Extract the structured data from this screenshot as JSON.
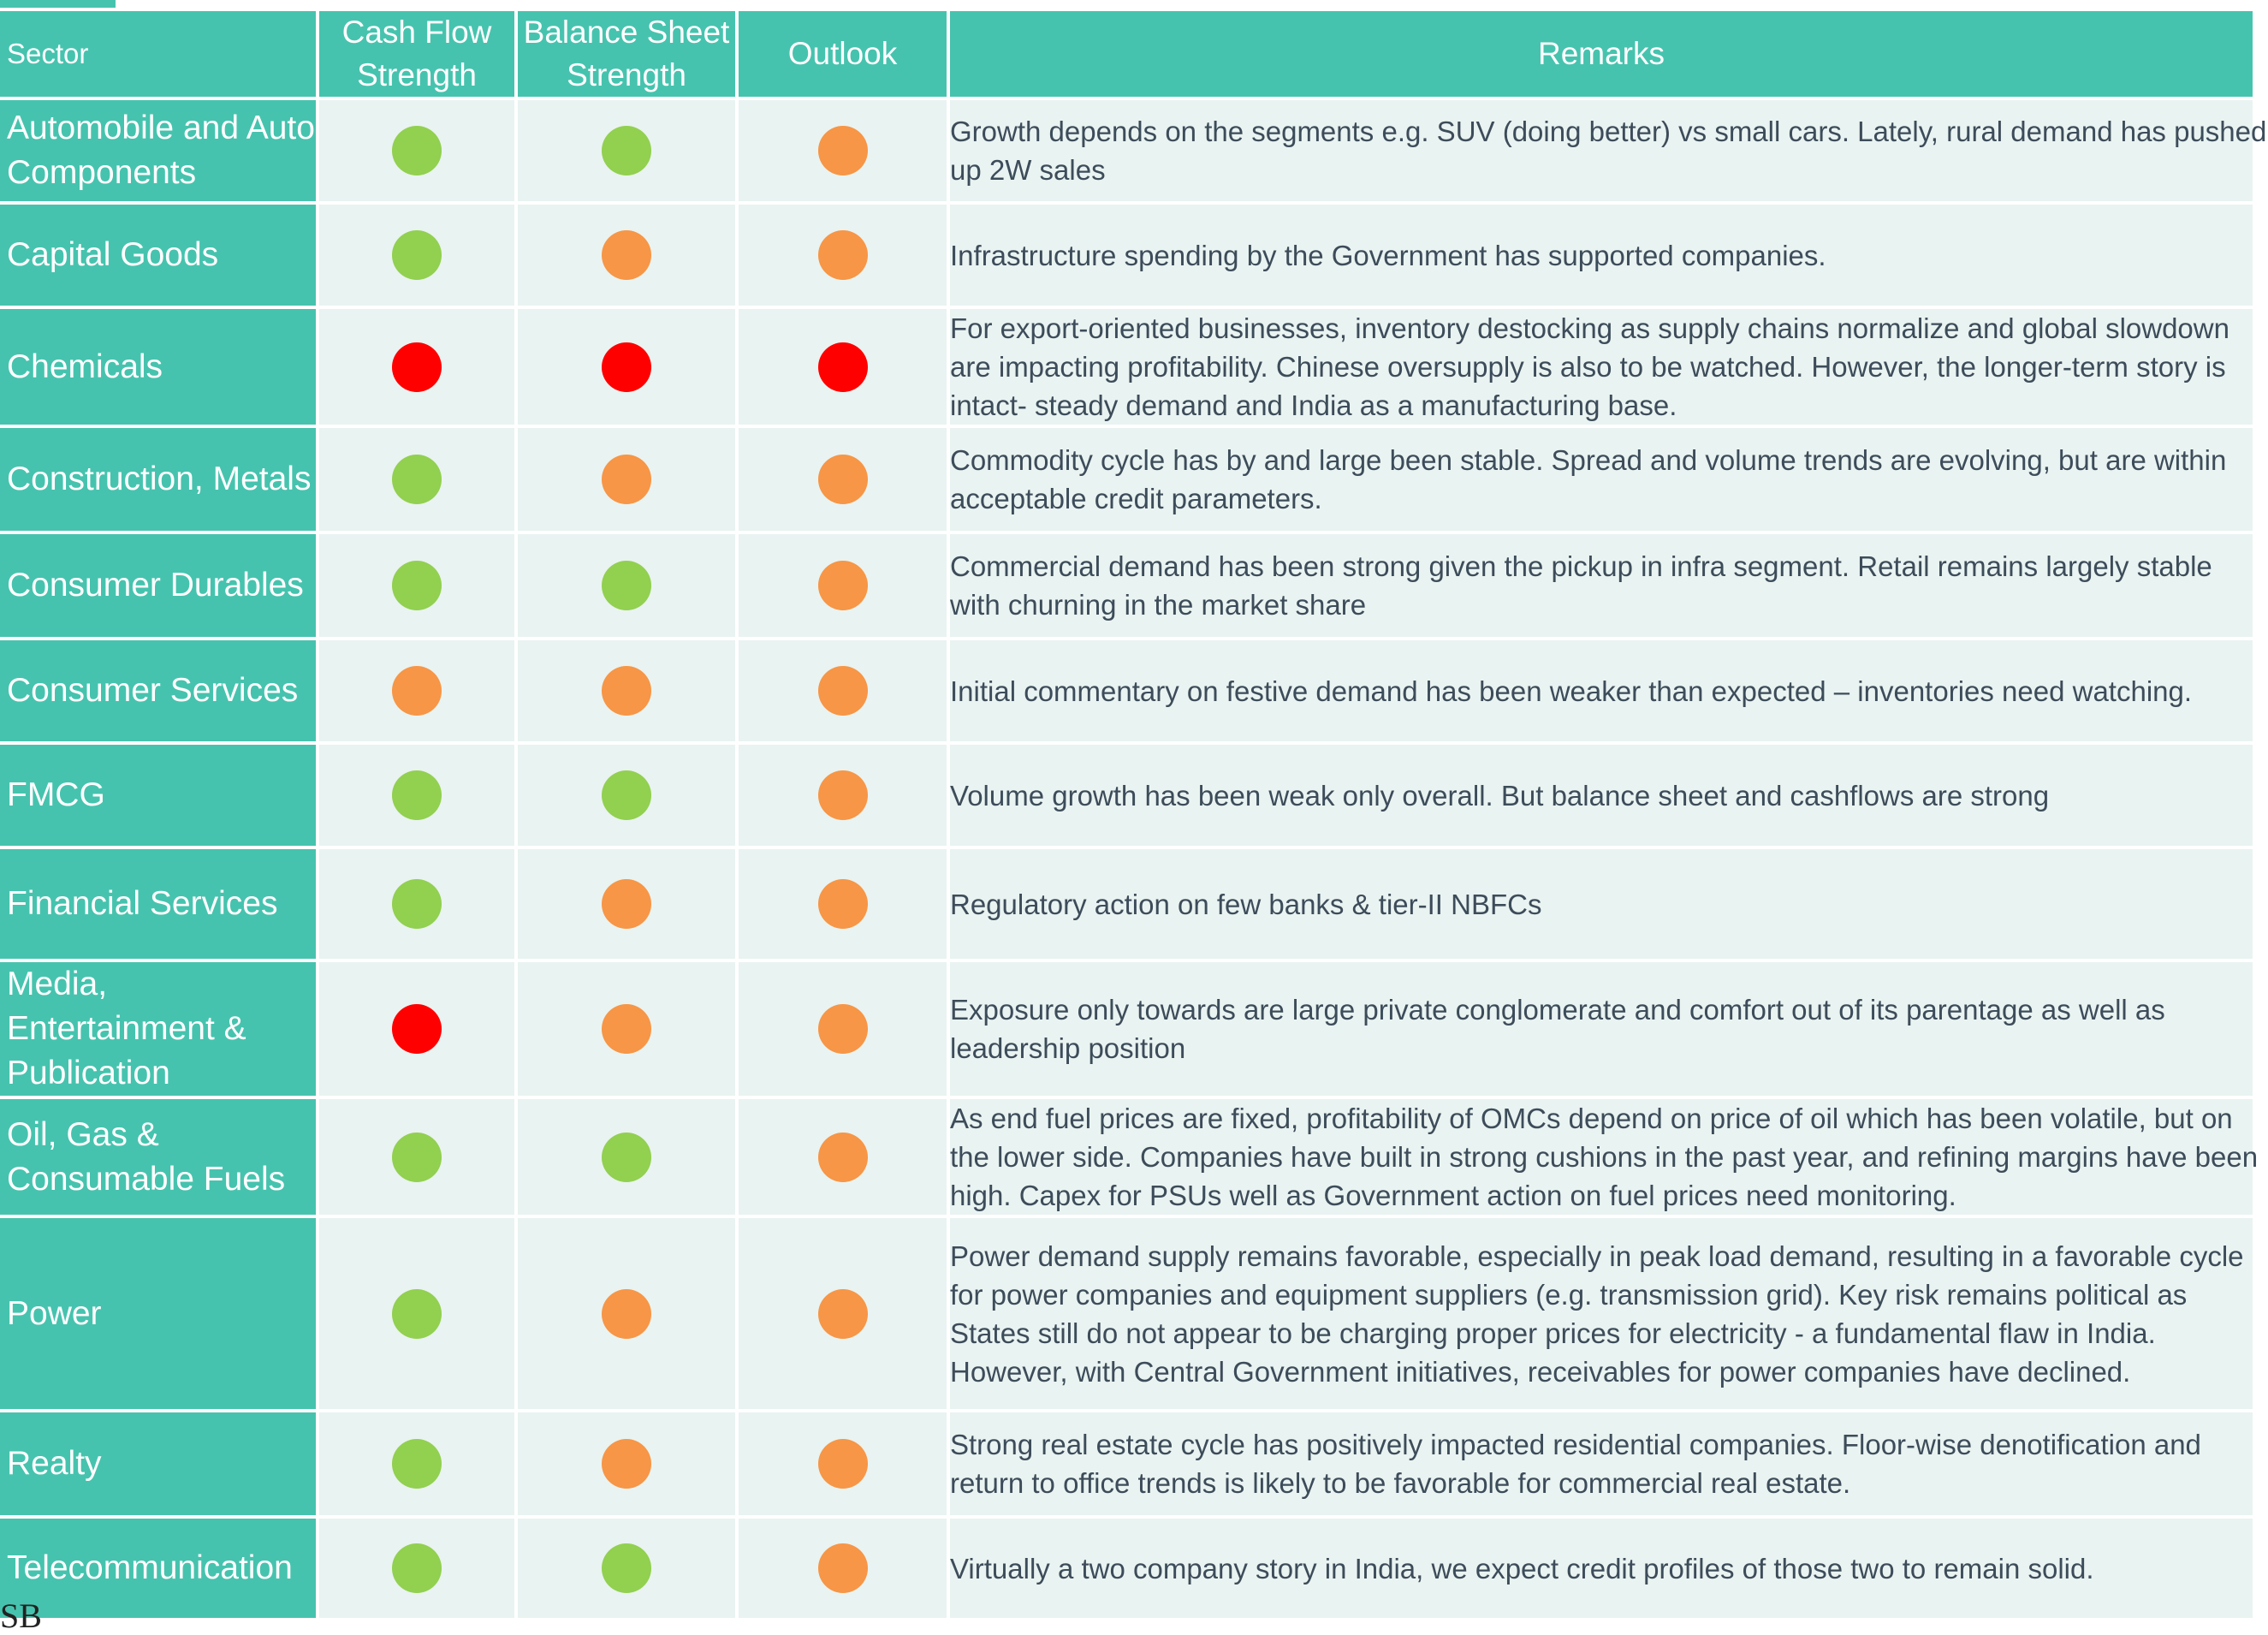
{
  "headers": {
    "sector": "Sector",
    "cash_flow": "Cash Flow Strength",
    "balance_sheet": "Balance Sheet Strength",
    "outlook": "Outlook",
    "remarks": "Remarks"
  },
  "colors": {
    "green": "#92d050",
    "orange": "#f79646",
    "red": "#ff0000",
    "header_teal": "#46c3ae",
    "row_bg": "#e9f3f1"
  },
  "rows": [
    {
      "sector": "Automobile and Auto Components",
      "cash_flow": "green",
      "balance_sheet": "green",
      "outlook": "orange",
      "remarks": "Growth depends on the segments e.g. SUV (doing better) vs small cars. Lately, rural demand has pushed up 2W sales"
    },
    {
      "sector": "Capital Goods",
      "cash_flow": "green",
      "balance_sheet": "orange",
      "outlook": "orange",
      "remarks": "Infrastructure spending by the Government has supported companies."
    },
    {
      "sector": "Chemicals",
      "cash_flow": "red",
      "balance_sheet": "red",
      "outlook": "red",
      "remarks": "For export-oriented businesses, inventory destocking as supply chains normalize and global slowdown are impacting profitability. Chinese oversupply is also to be watched. However, the longer-term story is intact- steady demand and India as a manufacturing base."
    },
    {
      "sector": "Construction, Metals",
      "cash_flow": "green",
      "balance_sheet": "orange",
      "outlook": "orange",
      "remarks": "Commodity cycle has by and large been stable. Spread and volume trends are evolving, but are within acceptable credit parameters."
    },
    {
      "sector": "Consumer Durables",
      "cash_flow": "green",
      "balance_sheet": "green",
      "outlook": "orange",
      "remarks": "Commercial demand has been strong given the pickup in infra segment. Retail remains largely stable with churning in the market share"
    },
    {
      "sector": "Consumer Services",
      "cash_flow": "orange",
      "balance_sheet": "orange",
      "outlook": "orange",
      "remarks": "Initial commentary on festive demand has been weaker than expected – inventories need watching."
    },
    {
      "sector": "FMCG",
      "cash_flow": "green",
      "balance_sheet": "green",
      "outlook": "orange",
      "remarks": "Volume growth has been weak only overall. But balance sheet and cashflows are strong"
    },
    {
      "sector": "Financial Services",
      "cash_flow": "green",
      "balance_sheet": "orange",
      "outlook": "orange",
      "remarks": "Regulatory action on few banks & tier-II NBFCs"
    },
    {
      "sector": "Media, Entertainment & Publication",
      "cash_flow": "red",
      "balance_sheet": "orange",
      "outlook": "orange",
      "remarks": "Exposure only towards are large private conglomerate and comfort out of its parentage as well as leadership position"
    },
    {
      "sector": "Oil, Gas & Consumable Fuels",
      "cash_flow": "green",
      "balance_sheet": "green",
      "outlook": "orange",
      "remarks": "As end fuel prices are fixed, profitability of OMCs depend on price of oil which has been volatile, but on the lower side. Companies have built in strong cushions in the past year, and refining margins have  been high. Capex for PSUs well as Government action on fuel prices need monitoring."
    },
    {
      "sector": "Power",
      "cash_flow": "green",
      "balance_sheet": "orange",
      "outlook": "orange",
      "remarks": "Power demand supply remains favorable, especially in peak load demand, resulting in a favorable cycle for power companies and equipment suppliers (e.g. transmission grid). Key risk remains political as States still do not appear to be charging proper prices for electricity - a fundamental flaw in India. However, with Central Government initiatives, receivables for power companies have declined."
    },
    {
      "sector": "Realty",
      "cash_flow": "green",
      "balance_sheet": "orange",
      "outlook": "orange",
      "remarks": "Strong real estate cycle has positively impacted residential companies. Floor-wise denotification and return to office trends is likely to be favorable for commercial real estate."
    },
    {
      "sector": "Telecommunication",
      "cash_flow": "green",
      "balance_sheet": "green",
      "outlook": "orange",
      "remarks": "Virtually a two company story in India, we expect credit profiles of those two to remain solid."
    }
  ]
}
